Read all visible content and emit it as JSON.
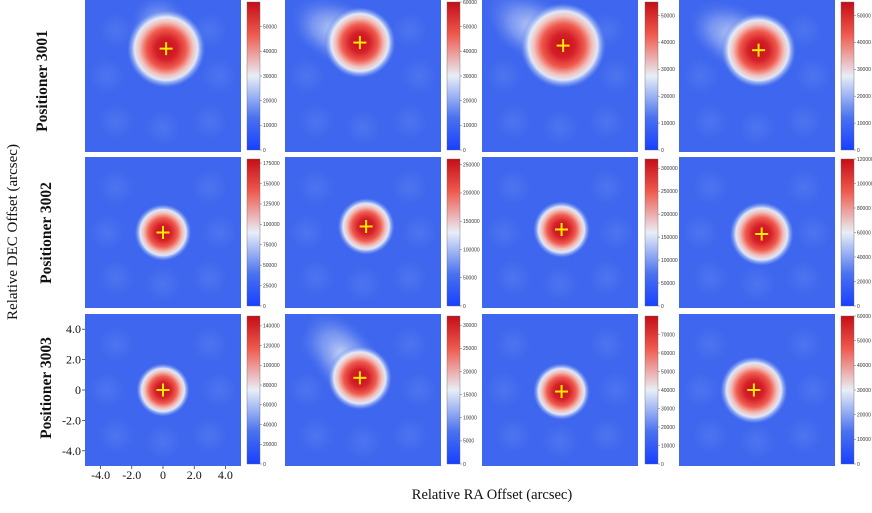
{
  "xlabel": "Relative RA Offset (arcsec)",
  "ylabel": "Relative DEC Offset (arcsec)",
  "row_labels": [
    "Positioner 3001",
    "Positioner 3002",
    "Positioner 3003"
  ],
  "chart_data": {
    "type": "heatmap",
    "layout": "3 rows x 4 columns",
    "xlabel": "Relative RA Offset (arcsec)",
    "ylabel": "Relative DEC Offset (arcsec)",
    "x_ticks": [
      "-4.0",
      "-2.0",
      "0",
      "2.0",
      "4.0"
    ],
    "y_ticks": [
      "4.0",
      "2.0",
      "0",
      "-2.0",
      "-4.0"
    ],
    "xlim": [
      -5,
      5
    ],
    "ylim": [
      -5,
      5
    ],
    "colormap": [
      "#1740ff",
      "#4a72ef",
      "#e8eef7",
      "#ef5a4d",
      "#c40d17"
    ],
    "marker_color": "#ffea00",
    "panels": [
      {
        "row": 0,
        "col": 0,
        "peak": [
          0.2,
          1.8
        ],
        "sigma": 1.1,
        "tail": [
          -0.2,
          3.2
        ],
        "cb_max": 60000,
        "cb_ticks": [
          0,
          10000,
          20000,
          30000,
          40000,
          50000
        ]
      },
      {
        "row": 0,
        "col": 1,
        "peak": [
          -0.2,
          2.2
        ],
        "sigma": 1.0,
        "tail": [
          -2.6,
          3.4
        ],
        "cb_max": 60000,
        "cb_ticks": [
          0,
          10000,
          20000,
          30000,
          40000,
          50000,
          60000
        ]
      },
      {
        "row": 0,
        "col": 2,
        "peak": [
          0.2,
          2.0
        ],
        "sigma": 1.2,
        "tail": [
          -2.8,
          3.8
        ],
        "cb_max": 55000,
        "cb_ticks": [
          0,
          10000,
          20000,
          30000,
          40000,
          50000
        ]
      },
      {
        "row": 0,
        "col": 3,
        "peak": [
          0.1,
          1.7
        ],
        "sigma": 1.05,
        "tail": [
          -2.3,
          3.1
        ],
        "cb_max": 55000,
        "cb_ticks": [
          0,
          10000,
          20000,
          30000,
          40000,
          50000
        ]
      },
      {
        "row": 1,
        "col": 0,
        "peak": [
          0.0,
          0.0
        ],
        "sigma": 0.8,
        "tail": null,
        "cb_max": 180000,
        "cb_ticks": [
          0,
          25000,
          50000,
          75000,
          100000,
          125000,
          150000,
          175000
        ]
      },
      {
        "row": 1,
        "col": 1,
        "peak": [
          0.2,
          0.4
        ],
        "sigma": 0.8,
        "tail": null,
        "cb_max": 260000,
        "cb_ticks": [
          0,
          50000,
          100000,
          150000,
          200000,
          250000
        ]
      },
      {
        "row": 1,
        "col": 2,
        "peak": [
          0.1,
          0.2
        ],
        "sigma": 0.8,
        "tail": null,
        "cb_max": 320000,
        "cb_ticks": [
          0,
          50000,
          100000,
          150000,
          200000,
          250000,
          300000
        ]
      },
      {
        "row": 1,
        "col": 3,
        "peak": [
          0.3,
          -0.1
        ],
        "sigma": 0.9,
        "tail": null,
        "cb_max": 120000,
        "cb_ticks": [
          0,
          20000,
          40000,
          60000,
          80000,
          100000,
          120000
        ]
      },
      {
        "row": 2,
        "col": 0,
        "peak": [
          0.0,
          0.0
        ],
        "sigma": 0.75,
        "tail": null,
        "cb_max": 150000,
        "cb_ticks": [
          0,
          20000,
          40000,
          60000,
          80000,
          100000,
          120000,
          140000
        ]
      },
      {
        "row": 2,
        "col": 1,
        "peak": [
          -0.2,
          0.8
        ],
        "sigma": 0.9,
        "tail": [
          -2.0,
          3.2
        ],
        "cb_max": 32000,
        "cb_ticks": [
          0,
          5000,
          10000,
          15000,
          20000,
          25000,
          30000
        ]
      },
      {
        "row": 2,
        "col": 2,
        "peak": [
          0.1,
          -0.1
        ],
        "sigma": 0.8,
        "tail": null,
        "cb_max": 80000,
        "cb_ticks": [
          0,
          10000,
          20000,
          30000,
          40000,
          50000,
          60000,
          70000
        ]
      },
      {
        "row": 2,
        "col": 3,
        "peak": [
          -0.2,
          0.0
        ],
        "sigma": 0.95,
        "tail": null,
        "cb_max": 60000,
        "cb_ticks": [
          0,
          10000,
          20000,
          30000,
          40000,
          50000,
          60000
        ]
      }
    ]
  }
}
